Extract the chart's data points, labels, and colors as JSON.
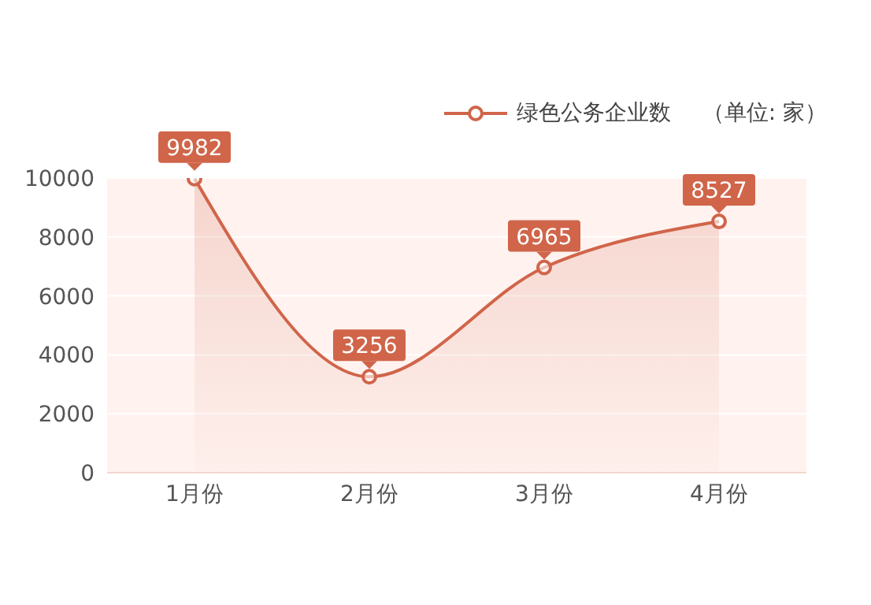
{
  "chart_data": {
    "type": "area",
    "categories": [
      "1月份",
      "2月份",
      "3月份",
      "4月份"
    ],
    "series": [
      {
        "name": "绿色公务企业数",
        "color": "#d0654a",
        "values": [
          9982,
          3256,
          6965,
          8527
        ]
      }
    ],
    "ylim": [
      0,
      10000
    ],
    "yticks": [
      0,
      2000,
      4000,
      6000,
      8000,
      10000
    ],
    "grid": "y",
    "legend": "top right",
    "marker": "circle",
    "data_labels": true,
    "annotations": [
      "（单位: 家）"
    ]
  }
}
